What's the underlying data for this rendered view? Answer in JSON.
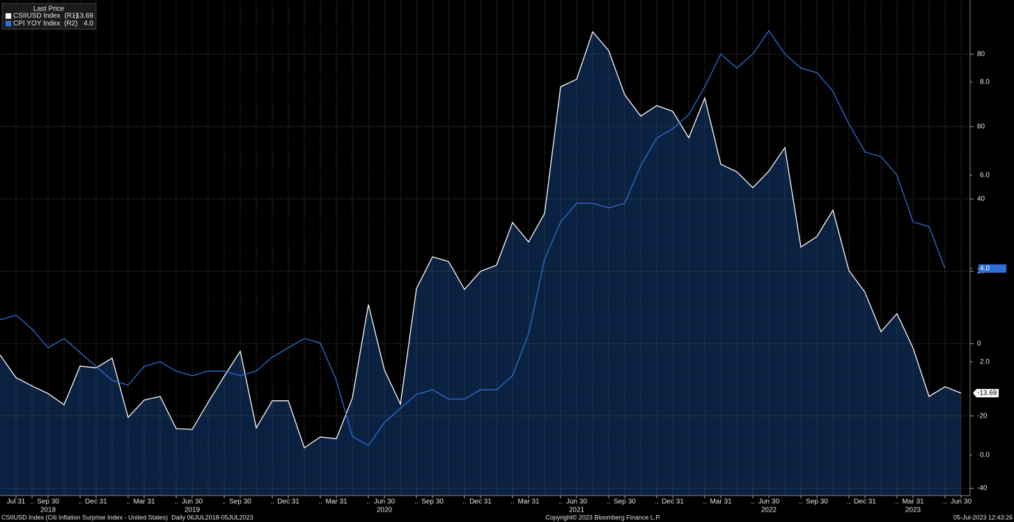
{
  "chart_data": {
    "type": "line",
    "legend_title": "Last Price",
    "x": [
      "2018-06-30",
      "2018-07-31",
      "2018-08-31",
      "2018-09-30",
      "2018-10-31",
      "2018-11-30",
      "2018-12-31",
      "2019-01-31",
      "2019-02-28",
      "2019-03-31",
      "2019-04-30",
      "2019-05-31",
      "2019-06-30",
      "2019-07-31",
      "2019-08-31",
      "2019-09-30",
      "2019-10-31",
      "2019-11-30",
      "2019-12-31",
      "2020-01-31",
      "2020-02-29",
      "2020-03-31",
      "2020-04-30",
      "2020-05-31",
      "2020-06-30",
      "2020-07-31",
      "2020-08-31",
      "2020-09-30",
      "2020-10-31",
      "2020-11-30",
      "2020-12-31",
      "2021-01-31",
      "2021-02-28",
      "2021-03-31",
      "2021-04-30",
      "2021-05-31",
      "2021-06-30",
      "2021-07-31",
      "2021-08-31",
      "2021-09-30",
      "2021-10-31",
      "2021-11-30",
      "2021-12-31",
      "2022-01-31",
      "2022-02-28",
      "2022-03-31",
      "2022-04-30",
      "2022-05-31",
      "2022-06-30",
      "2022-07-31",
      "2022-08-31",
      "2022-09-30",
      "2022-10-31",
      "2022-11-30",
      "2022-12-31",
      "2023-01-31",
      "2023-02-28",
      "2023-03-31",
      "2023-04-30",
      "2023-05-31",
      "2023-06-30"
    ],
    "xlim": [
      "2018-06-30",
      "2023-06-30"
    ],
    "series": [
      {
        "name": "CSIIUSD Index  (R1)",
        "color": "#ffffff",
        "fill": "#0b2141",
        "axis": "y",
        "values": [
          -3.1,
          -9.4,
          -11.7,
          -13.8,
          -16.9,
          -6.2,
          -6.7,
          -4.0,
          -20.4,
          -15.6,
          -14.6,
          -23.5,
          -23.7,
          -16.2,
          -9.0,
          -2.1,
          -23.3,
          -15.8,
          -15.8,
          -28.8,
          -25.8,
          -26.3,
          -15.0,
          10.8,
          -7.3,
          -16.7,
          15.2,
          24.0,
          22.7,
          15.0,
          20.0,
          21.7,
          33.5,
          28.1,
          36.0,
          71.0,
          73.1,
          86.2,
          81.0,
          68.8,
          62.9,
          65.8,
          64.2,
          56.9,
          67.9,
          49.6,
          47.5,
          43.1,
          47.7,
          54.2,
          26.7,
          29.6,
          36.9,
          20.2,
          14.2,
          3.3,
          8.3,
          -1.2,
          -14.6,
          -11.9,
          -13.69
        ]
      },
      {
        "name": "CPI YOY Index  (R2)",
        "color": "#2e6fd6",
        "axis": "y2",
        "values": [
          2.9,
          3.0,
          2.7,
          2.3,
          2.5,
          2.2,
          1.9,
          1.6,
          1.5,
          1.9,
          2.0,
          1.8,
          1.7,
          1.8,
          1.8,
          1.7,
          1.8,
          2.1,
          2.3,
          2.5,
          2.4,
          1.6,
          0.4,
          0.2,
          0.7,
          1.0,
          1.3,
          1.4,
          1.2,
          1.2,
          1.4,
          1.4,
          1.7,
          2.6,
          4.2,
          5.0,
          5.4,
          5.4,
          5.3,
          5.4,
          6.2,
          6.8,
          7.0,
          7.3,
          7.9,
          8.6,
          8.3,
          8.6,
          9.1,
          8.6,
          8.3,
          8.2,
          7.8,
          7.1,
          6.5,
          6.4,
          6.0,
          5.0,
          4.9,
          4.0,
          null
        ],
        "value_labels": [
          null,
          null,
          null,
          null,
          null,
          null,
          null,
          null,
          null,
          null,
          null,
          null,
          null,
          null,
          null,
          null,
          null,
          null,
          null,
          null,
          null,
          null,
          null,
          null,
          null,
          null,
          null,
          null,
          null,
          null,
          null,
          null,
          null,
          null,
          null,
          null,
          null,
          null,
          null,
          null,
          null,
          null,
          null,
          null,
          null,
          null,
          null,
          null,
          null,
          null,
          null,
          null,
          null,
          null,
          null,
          null,
          null,
          null,
          null,
          "4.0",
          null
        ]
      }
    ],
    "ylim": [
      -42,
      95
    ],
    "yticks": [
      80,
      60,
      40,
      20,
      0,
      -20,
      -40
    ],
    "y2lim": [
      -0.87,
      9.76
    ],
    "y2ticks": [
      {
        "value": 8,
        "label": "8.0"
      },
      {
        "value": 6,
        "label": "6.0"
      },
      {
        "value": 4,
        "label": "4.0"
      },
      {
        "value": 2,
        "label": "2.0"
      },
      {
        "value": 0,
        "label": "0.0"
      }
    ],
    "xticks": [
      {
        "value": "2018-07-31",
        "label": "Jul 31"
      },
      {
        "value": "2018-08-31",
        "label": ".."
      },
      {
        "value": "2018-09-30",
        "label": "Sep 30"
      },
      {
        "value": "2018-11-30",
        "label": ".."
      },
      {
        "value": "2018-12-31",
        "label": "Dec 31"
      },
      {
        "value": "2019-02-28",
        "label": ".."
      },
      {
        "value": "2019-03-31",
        "label": "Mar 31"
      },
      {
        "value": "2019-05-31",
        "label": ".."
      },
      {
        "value": "2019-06-30",
        "label": "Jun 30"
      },
      {
        "value": "2019-08-31",
        "label": ".."
      },
      {
        "value": "2019-09-30",
        "label": "Sep 30"
      },
      {
        "value": "2019-11-30",
        "label": ".."
      },
      {
        "value": "2019-12-31",
        "label": "Dec 31"
      },
      {
        "value": "2020-02-29",
        "label": ".."
      },
      {
        "value": "2020-03-31",
        "label": "Mar 31"
      },
      {
        "value": "2020-05-31",
        "label": ".."
      },
      {
        "value": "2020-06-30",
        "label": "Jun 30"
      },
      {
        "value": "2020-08-31",
        "label": ".."
      },
      {
        "value": "2020-09-30",
        "label": "Sep 30"
      },
      {
        "value": "2020-11-30",
        "label": ".."
      },
      {
        "value": "2020-12-31",
        "label": "Dec 31"
      },
      {
        "value": "2021-02-28",
        "label": ".."
      },
      {
        "value": "2021-03-31",
        "label": "Mar 31"
      },
      {
        "value": "2021-05-31",
        "label": ".."
      },
      {
        "value": "2021-06-30",
        "label": "Jun 30"
      },
      {
        "value": "2021-08-31",
        "label": ".."
      },
      {
        "value": "2021-09-30",
        "label": "Sep 30"
      },
      {
        "value": "2021-11-30",
        "label": ".."
      },
      {
        "value": "2021-12-31",
        "label": "Dec 31"
      },
      {
        "value": "2022-02-28",
        "label": ".."
      },
      {
        "value": "2022-03-31",
        "label": "Mar 31"
      },
      {
        "value": "2022-05-31",
        "label": ".."
      },
      {
        "value": "2022-06-30",
        "label": "Jun 30"
      },
      {
        "value": "2022-08-31",
        "label": ".."
      },
      {
        "value": "2022-09-30",
        "label": "Sep 30"
      },
      {
        "value": "2022-11-30",
        "label": ".."
      },
      {
        "value": "2022-12-31",
        "label": "Dec 31"
      },
      {
        "value": "2023-02-28",
        "label": ".."
      },
      {
        "value": "2023-03-31",
        "label": "Mar 31"
      },
      {
        "value": "2023-05-31",
        "label": ".."
      },
      {
        "value": "2023-06-30",
        "label": "Jun 30"
      }
    ],
    "year_labels": [
      {
        "value": "2018-09-30",
        "label": "2018"
      },
      {
        "value": "2019-06-30",
        "label": "2019"
      },
      {
        "value": "2020-06-30",
        "label": "2020"
      },
      {
        "value": "2021-06-30",
        "label": "2021"
      },
      {
        "value": "2022-06-30",
        "label": "2022"
      },
      {
        "value": "2023-03-31",
        "label": "2023"
      }
    ],
    "grid": true,
    "legend": "top-left",
    "footer_left": "CSIIUSD Index (Citi Inflation Surprise Index - United States)  Daily 06JUL2018-05JUL2023",
    "footer_center": "Copyright© 2023 Bloomberg Finance L.P.",
    "footer_right": "05-Jul-2023 12:43:26"
  }
}
